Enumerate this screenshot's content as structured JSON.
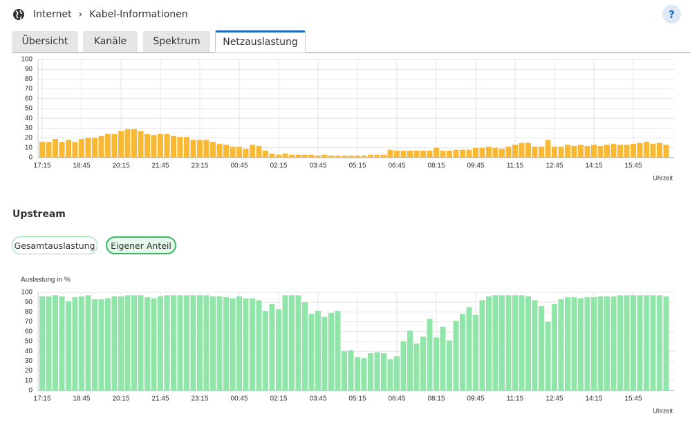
{
  "header": {
    "breadcrumb": [
      "Internet",
      "Kabel-Informationen"
    ],
    "help": "?"
  },
  "tabs": {
    "items": [
      "Übersicht",
      "Kanäle",
      "Spektrum",
      "Netzauslastung"
    ],
    "active": 3
  },
  "upstream": {
    "title": "Upstream",
    "buttons": [
      "Gesamtauslastung",
      "Eigener Anteil"
    ],
    "active": 1
  },
  "chart_data": [
    {
      "type": "bar",
      "color": "#f9b934",
      "xlabel": "Uhrzeit",
      "grid": true,
      "ylim": [
        0,
        100
      ],
      "yticks": [
        0,
        10,
        20,
        30,
        40,
        50,
        60,
        70,
        80,
        90,
        100
      ],
      "categories": [
        "17:15",
        null,
        null,
        null,
        null,
        null,
        "18:45",
        null,
        null,
        null,
        null,
        null,
        "20:15",
        null,
        null,
        null,
        null,
        null,
        "21:45",
        null,
        null,
        null,
        null,
        null,
        "23:15",
        null,
        null,
        null,
        null,
        null,
        "00:45",
        null,
        null,
        null,
        null,
        null,
        "02:15",
        null,
        null,
        null,
        null,
        null,
        "03:45",
        null,
        null,
        null,
        null,
        null,
        "05:15",
        null,
        null,
        null,
        null,
        null,
        "06:45",
        null,
        null,
        null,
        null,
        null,
        "08:15",
        null,
        null,
        null,
        null,
        null,
        "09:45",
        null,
        null,
        null,
        null,
        null,
        "11:15",
        null,
        null,
        null,
        null,
        null,
        "12:45",
        null,
        null,
        null,
        null,
        null,
        "14:15",
        null,
        null,
        null,
        null,
        null,
        "15:45",
        null,
        null,
        null,
        null,
        null
      ],
      "values": [
        16,
        16,
        19,
        16,
        18,
        16,
        19,
        20,
        20,
        22,
        24,
        24,
        27,
        29,
        29,
        27,
        24,
        23,
        24,
        24,
        22,
        21,
        21,
        18,
        18,
        18,
        16,
        14,
        13,
        11,
        11,
        9,
        13,
        12,
        7,
        4,
        3,
        4,
        3,
        3,
        3,
        3,
        2,
        3,
        2,
        2,
        2,
        2,
        2,
        2,
        3,
        3,
        3,
        8,
        7,
        7,
        7,
        7,
        7,
        7,
        10,
        7,
        7,
        8,
        8,
        8,
        10,
        10,
        11,
        10,
        9,
        11,
        13,
        15,
        15,
        11,
        11,
        18,
        11,
        11,
        13,
        12,
        13,
        12,
        13,
        12,
        13,
        14,
        13,
        13,
        14,
        15,
        16,
        14,
        15,
        13
      ]
    },
    {
      "type": "bar",
      "color": "#90e6a8",
      "ylabel": "Auslastung in %",
      "xlabel": "Uhrzeit",
      "grid": true,
      "ylim": [
        0,
        100
      ],
      "yticks": [
        0,
        10,
        20,
        30,
        40,
        50,
        60,
        70,
        80,
        90,
        100
      ],
      "categories": [
        "17:15",
        null,
        null,
        null,
        null,
        null,
        "18:45",
        null,
        null,
        null,
        null,
        null,
        "20:15",
        null,
        null,
        null,
        null,
        null,
        "21:45",
        null,
        null,
        null,
        null,
        null,
        "23:15",
        null,
        null,
        null,
        null,
        null,
        "00:45",
        null,
        null,
        null,
        null,
        null,
        "02:15",
        null,
        null,
        null,
        null,
        null,
        "03:45",
        null,
        null,
        null,
        null,
        null,
        "05:15",
        null,
        null,
        null,
        null,
        null,
        "06:45",
        null,
        null,
        null,
        null,
        null,
        "08:15",
        null,
        null,
        null,
        null,
        null,
        "09:45",
        null,
        null,
        null,
        null,
        null,
        "11:15",
        null,
        null,
        null,
        null,
        null,
        "12:45",
        null,
        null,
        null,
        null,
        null,
        "14:15",
        null,
        null,
        null,
        null,
        null,
        "15:45",
        null,
        null,
        null,
        null,
        null
      ],
      "values": [
        96,
        96,
        97,
        96,
        91,
        95,
        96,
        97,
        93,
        93,
        94,
        96,
        96,
        97,
        97,
        97,
        95,
        94,
        96,
        97,
        97,
        97,
        97,
        97,
        97,
        97,
        96,
        96,
        95,
        94,
        96,
        94,
        94,
        92,
        81,
        88,
        83,
        97,
        97,
        97,
        90,
        78,
        81,
        75,
        79,
        81,
        40,
        41,
        34,
        33,
        38,
        39,
        38,
        32,
        35,
        50,
        61,
        48,
        55,
        73,
        54,
        65,
        51,
        71,
        78,
        85,
        77,
        92,
        96,
        97,
        97,
        97,
        97,
        97,
        96,
        92,
        86,
        70,
        88,
        93,
        95,
        95,
        94,
        95,
        95,
        96,
        96,
        96,
        97,
        97,
        97,
        97,
        97,
        97,
        97,
        96
      ]
    }
  ]
}
